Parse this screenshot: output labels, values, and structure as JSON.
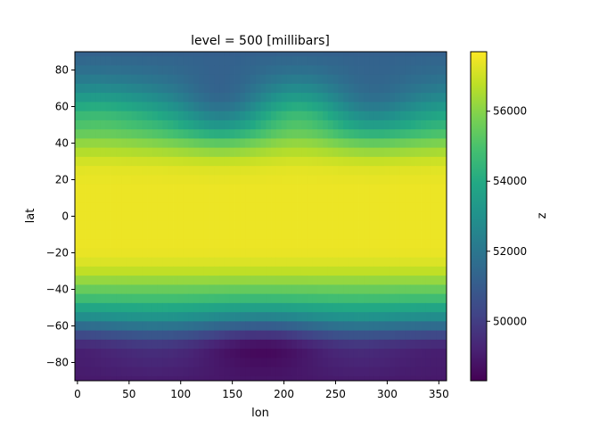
{
  "chart_data": {
    "type": "heatmap",
    "title": "level = 500 [millibars]",
    "xlabel": "lon",
    "ylabel": "lat",
    "colorbar_label": "z",
    "colormap": "viridis",
    "xlim": [
      -2.5,
      357.5
    ],
    "ylim": [
      -90,
      90
    ],
    "x_ticks": [
      0,
      50,
      100,
      150,
      200,
      250,
      300,
      350
    ],
    "x_tick_labels": [
      "0",
      "50",
      "100",
      "150",
      "200",
      "250",
      "300",
      "350"
    ],
    "y_ticks": [
      80,
      60,
      40,
      20,
      0,
      -20,
      -40,
      -60,
      -80
    ],
    "y_tick_labels": [
      "80",
      "60",
      "40",
      "20",
      "0",
      "−20",
      "−40",
      "−60",
      "−80"
    ],
    "value_range": [
      48300,
      57700
    ],
    "colorbar_ticks": [
      50000,
      52000,
      54000,
      56000
    ],
    "colorbar_tick_labels": [
      "50000",
      "52000",
      "54000",
      "56000"
    ],
    "grid": false,
    "lon_step": 5,
    "lat_step": 5,
    "lat_rows": [
      90,
      85,
      80,
      75,
      70,
      65,
      60,
      55,
      50,
      45,
      40,
      35,
      30,
      25,
      20,
      15,
      10,
      5,
      0,
      -5,
      -10,
      -15,
      -20,
      -25,
      -30,
      -35,
      -40,
      -45,
      -50,
      -55,
      -60,
      -65,
      -70,
      -75,
      -80,
      -85,
      -90
    ],
    "zonal_mean_z": [
      51200,
      51400,
      51600,
      51900,
      52300,
      52800,
      53400,
      54000,
      54500,
      55100,
      55900,
      56500,
      57000,
      57300,
      57400,
      57450,
      57450,
      57450,
      57450,
      57450,
      57450,
      57450,
      57400,
      57200,
      56800,
      56200,
      55500,
      54800,
      53900,
      53000,
      51800,
      50600,
      49700,
      49300,
      49200,
      49100,
      49000
    ]
  }
}
